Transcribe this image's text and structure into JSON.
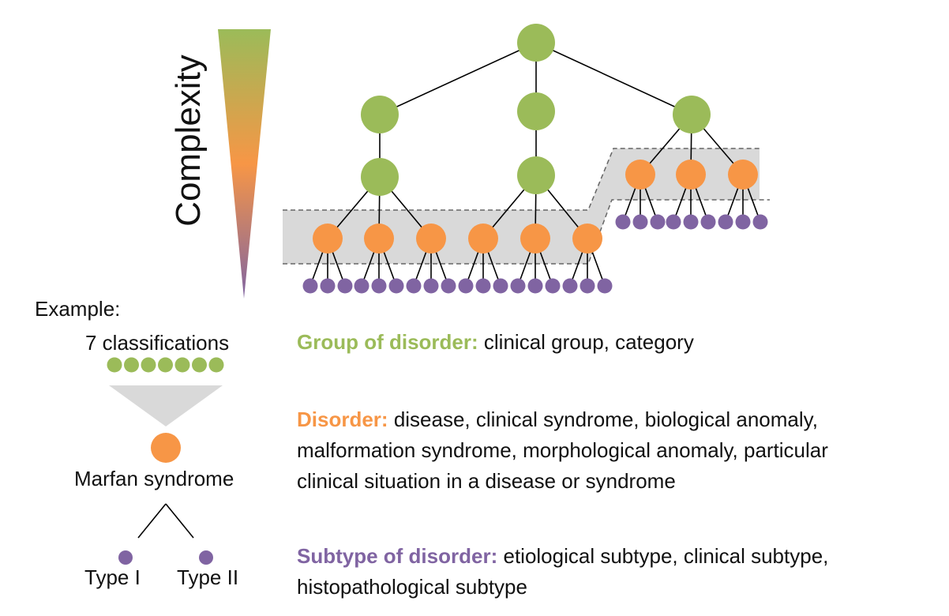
{
  "diagram": {
    "axis_label": "Complexity",
    "example": {
      "title": "Example:",
      "count_label": "7 classifications",
      "disorder_name": "Marfan syndrome",
      "subtypes": [
        "Type I",
        "Type II"
      ]
    },
    "levels": [
      {
        "key": "group",
        "heading": "Group of disorder:",
        "description": "clinical group, category"
      },
      {
        "key": "disorder",
        "heading": "Disorder:",
        "description_lines": [
          "disease, clinical syndrome, biological anomaly,",
          "malformation syndrome, morphological anomaly, particular",
          "clinical situation in a disease or syndrome"
        ]
      },
      {
        "key": "subtype",
        "heading": "Subtype of disorder:",
        "description_lines": [
          "etiological subtype, clinical subtype,",
          "histopathological subtype"
        ]
      }
    ]
  },
  "colors": {
    "green": "#9bbb59",
    "orange": "#f79646",
    "purple": "#8064a2",
    "band": "#d9d9d9",
    "line": "#000000"
  }
}
